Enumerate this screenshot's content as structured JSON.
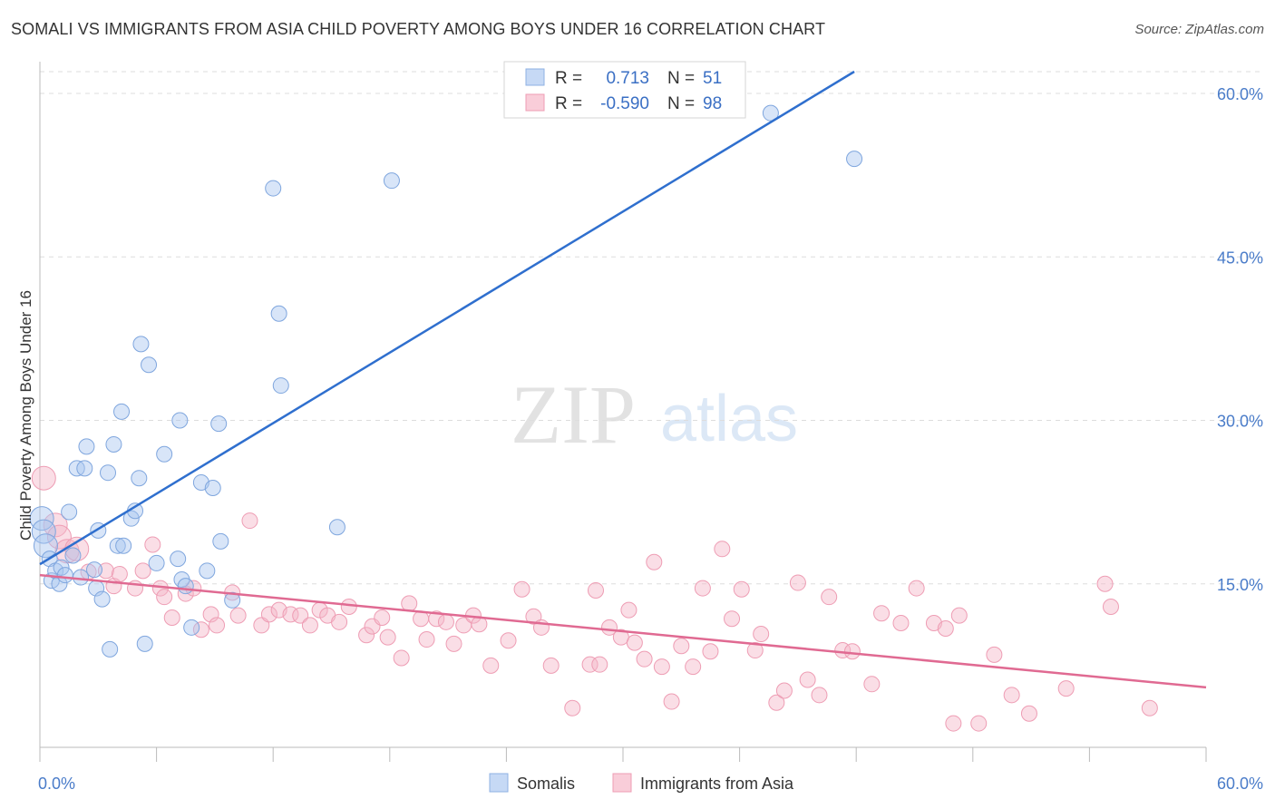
{
  "header": {
    "title": "SOMALI VS IMMIGRANTS FROM ASIA CHILD POVERTY AMONG BOYS UNDER 16 CORRELATION CHART",
    "source": "Source: ZipAtlas.com"
  },
  "watermark": {
    "zip": "ZIP",
    "atlas": "atlas"
  },
  "legend_box": {
    "rows": [
      {
        "r_label": "R =",
        "r_value": "0.713",
        "n_label": "N =",
        "n_value": "51",
        "color": "#a9c6f0"
      },
      {
        "r_label": "R =",
        "r_value": "-0.590",
        "n_label": "N =",
        "n_value": "98",
        "color": "#f4b6c8"
      }
    ]
  },
  "bottom_legend": {
    "items": [
      "Somalis",
      "Immigrants from Asia"
    ]
  },
  "chart_data": {
    "type": "scatter",
    "title": "SOMALI VS IMMIGRANTS FROM ASIA CHILD POVERTY AMONG BOYS UNDER 16 CORRELATION CHART",
    "xlabel": "",
    "ylabel": "Child Poverty Among Boys Under 16",
    "xlim": [
      0,
      60
    ],
    "ylim": [
      0,
      62
    ],
    "x_tick_labels": [
      "0.0%",
      "60.0%"
    ],
    "y_ticks": [
      15,
      30,
      45,
      60
    ],
    "y_tick_labels": [
      "15.0%",
      "30.0%",
      "45.0%",
      "60.0%"
    ],
    "grid": true,
    "legend_placement": "top-center",
    "colors": {
      "somalis": "#a9c6f0",
      "somalis_line": "#2f6fce",
      "asia": "#f4b6c8",
      "asia_line": "#e06a92"
    },
    "series": [
      {
        "name": "Somalis",
        "r": 0.713,
        "n": 51,
        "trend": {
          "x0": 0,
          "y0": 16.8,
          "x1": 41.9,
          "y1": 62
        },
        "points": [
          [
            0.1,
            21.0
          ],
          [
            0.2,
            19.8
          ],
          [
            0.3,
            18.5
          ],
          [
            0.5,
            17.3
          ],
          [
            0.6,
            15.3
          ],
          [
            0.8,
            16.2
          ],
          [
            1.0,
            15.0
          ],
          [
            1.1,
            16.5
          ],
          [
            1.3,
            15.8
          ],
          [
            1.5,
            21.6
          ],
          [
            1.7,
            17.6
          ],
          [
            1.9,
            25.6
          ],
          [
            2.1,
            15.6
          ],
          [
            2.3,
            25.6
          ],
          [
            2.4,
            27.6
          ],
          [
            2.8,
            16.3
          ],
          [
            2.9,
            14.6
          ],
          [
            3.0,
            19.9
          ],
          [
            3.2,
            13.6
          ],
          [
            3.5,
            25.2
          ],
          [
            3.6,
            9.0
          ],
          [
            3.8,
            27.8
          ],
          [
            4.0,
            18.5
          ],
          [
            4.2,
            30.8
          ],
          [
            4.3,
            18.5
          ],
          [
            4.7,
            21.0
          ],
          [
            4.9,
            21.7
          ],
          [
            5.1,
            24.7
          ],
          [
            5.2,
            37.0
          ],
          [
            5.4,
            9.5
          ],
          [
            5.6,
            35.1
          ],
          [
            6.0,
            16.9
          ],
          [
            6.4,
            26.9
          ],
          [
            7.1,
            17.3
          ],
          [
            7.2,
            30.0
          ],
          [
            7.3,
            15.4
          ],
          [
            7.5,
            14.8
          ],
          [
            7.8,
            11.0
          ],
          [
            8.3,
            24.3
          ],
          [
            8.6,
            16.2
          ],
          [
            8.9,
            23.8
          ],
          [
            9.2,
            29.7
          ],
          [
            9.3,
            18.9
          ],
          [
            9.9,
            13.5
          ],
          [
            12.0,
            51.3
          ],
          [
            12.3,
            39.8
          ],
          [
            12.4,
            33.2
          ],
          [
            15.3,
            20.2
          ],
          [
            18.1,
            52.0
          ],
          [
            37.6,
            58.2
          ],
          [
            41.9,
            54.0
          ]
        ]
      },
      {
        "name": "Immigrants from Asia",
        "r": -0.59,
        "n": 98,
        "trend": {
          "x0": 0,
          "y0": 15.8,
          "x1": 60,
          "y1": 5.5
        },
        "points": [
          [
            0.2,
            24.7
          ],
          [
            0.8,
            20.4
          ],
          [
            1.0,
            19.3
          ],
          [
            1.4,
            18.0
          ],
          [
            1.9,
            18.2
          ],
          [
            2.5,
            16.1
          ],
          [
            3.4,
            16.2
          ],
          [
            3.8,
            14.8
          ],
          [
            4.1,
            15.9
          ],
          [
            4.9,
            14.6
          ],
          [
            5.3,
            16.2
          ],
          [
            5.8,
            18.6
          ],
          [
            6.2,
            14.6
          ],
          [
            6.4,
            13.8
          ],
          [
            6.8,
            11.9
          ],
          [
            7.5,
            14.1
          ],
          [
            7.9,
            14.6
          ],
          [
            8.3,
            10.8
          ],
          [
            8.8,
            12.2
          ],
          [
            9.1,
            11.2
          ],
          [
            9.9,
            14.2
          ],
          [
            10.2,
            12.1
          ],
          [
            10.8,
            20.8
          ],
          [
            11.4,
            11.2
          ],
          [
            11.8,
            12.2
          ],
          [
            12.3,
            12.6
          ],
          [
            12.9,
            12.2
          ],
          [
            13.4,
            12.1
          ],
          [
            13.9,
            11.2
          ],
          [
            14.4,
            12.6
          ],
          [
            14.8,
            12.1
          ],
          [
            15.4,
            11.5
          ],
          [
            15.9,
            12.9
          ],
          [
            16.8,
            10.3
          ],
          [
            17.1,
            11.1
          ],
          [
            17.6,
            11.9
          ],
          [
            17.9,
            10.1
          ],
          [
            18.6,
            8.2
          ],
          [
            19.0,
            13.2
          ],
          [
            19.6,
            11.8
          ],
          [
            19.9,
            9.9
          ],
          [
            20.4,
            11.8
          ],
          [
            20.9,
            11.5
          ],
          [
            21.3,
            9.5
          ],
          [
            21.8,
            11.2
          ],
          [
            22.3,
            12.1
          ],
          [
            22.6,
            11.3
          ],
          [
            23.2,
            7.5
          ],
          [
            24.1,
            9.8
          ],
          [
            24.8,
            14.5
          ],
          [
            25.4,
            12.0
          ],
          [
            25.8,
            11.0
          ],
          [
            26.3,
            7.5
          ],
          [
            27.4,
            3.6
          ],
          [
            28.3,
            7.6
          ],
          [
            28.6,
            14.4
          ],
          [
            28.8,
            7.6
          ],
          [
            29.3,
            11.0
          ],
          [
            29.9,
            10.1
          ],
          [
            30.3,
            12.6
          ],
          [
            30.6,
            9.6
          ],
          [
            31.1,
            8.1
          ],
          [
            31.6,
            17.0
          ],
          [
            32.0,
            7.4
          ],
          [
            32.5,
            4.2
          ],
          [
            33.0,
            9.3
          ],
          [
            33.6,
            7.4
          ],
          [
            34.1,
            14.6
          ],
          [
            34.5,
            8.8
          ],
          [
            35.1,
            18.2
          ],
          [
            35.6,
            11.8
          ],
          [
            36.1,
            14.5
          ],
          [
            36.8,
            8.9
          ],
          [
            37.1,
            10.4
          ],
          [
            37.9,
            4.1
          ],
          [
            38.3,
            5.2
          ],
          [
            39.0,
            15.1
          ],
          [
            39.5,
            6.2
          ],
          [
            40.1,
            4.8
          ],
          [
            40.6,
            13.8
          ],
          [
            41.3,
            8.9
          ],
          [
            41.8,
            8.8
          ],
          [
            42.8,
            5.8
          ],
          [
            43.3,
            12.3
          ],
          [
            44.3,
            11.4
          ],
          [
            45.1,
            14.6
          ],
          [
            46.0,
            11.4
          ],
          [
            46.6,
            10.9
          ],
          [
            47.0,
            2.2
          ],
          [
            47.3,
            12.1
          ],
          [
            48.3,
            2.2
          ],
          [
            49.1,
            8.5
          ],
          [
            50.0,
            4.8
          ],
          [
            50.9,
            3.1
          ],
          [
            52.8,
            5.4
          ],
          [
            54.8,
            15.0
          ],
          [
            55.1,
            12.9
          ],
          [
            57.1,
            3.6
          ]
        ]
      }
    ]
  }
}
